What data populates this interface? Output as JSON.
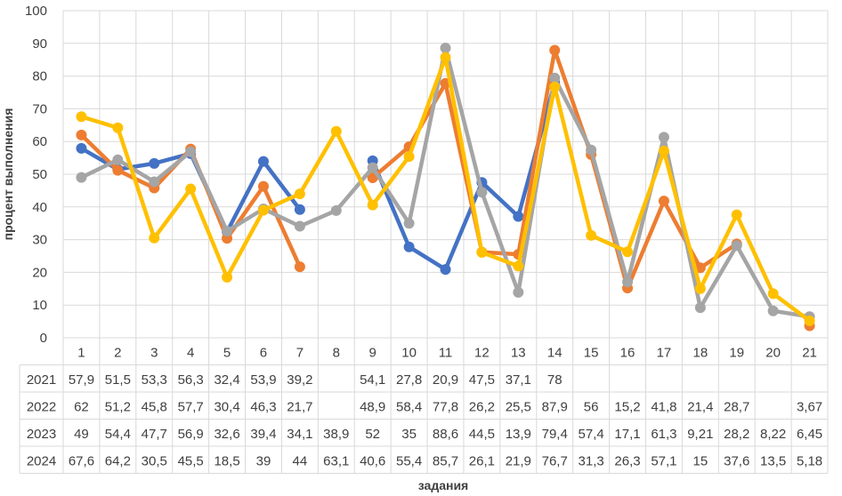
{
  "chart_data": {
    "type": "line",
    "title": "",
    "xlabel": "задания",
    "ylabel": "процент выполнения",
    "ylim": [
      0,
      100
    ],
    "yticks": [
      0,
      10,
      20,
      30,
      40,
      50,
      60,
      70,
      80,
      90,
      100
    ],
    "grid": true,
    "categories": [
      "1",
      "2",
      "3",
      "4",
      "5",
      "6",
      "7",
      "8",
      "9",
      "10",
      "11",
      "12",
      "13",
      "14",
      "15",
      "16",
      "17",
      "18",
      "19",
      "20",
      "21"
    ],
    "series": [
      {
        "name": "2021",
        "color": "#4472C4",
        "values": [
          57.9,
          51.5,
          53.3,
          56.3,
          32.4,
          53.9,
          39.2,
          null,
          54.1,
          27.8,
          20.9,
          47.5,
          37.1,
          78,
          null,
          null,
          null,
          null,
          null,
          null,
          null
        ],
        "labels": [
          "57,9",
          "51,5",
          "53,3",
          "56,3",
          "32,4",
          "53,9",
          "39,2",
          "",
          "54,1",
          "27,8",
          "20,9",
          "47,5",
          "37,1",
          "78",
          "",
          "",
          "",
          "",
          "",
          "",
          ""
        ]
      },
      {
        "name": "2022",
        "color": "#ED7D31",
        "values": [
          62,
          51.2,
          45.8,
          57.7,
          30.4,
          46.3,
          21.7,
          null,
          48.9,
          58.4,
          77.8,
          26.2,
          25.5,
          87.9,
          56,
          15.2,
          41.8,
          21.4,
          28.7,
          null,
          3.67
        ],
        "labels": [
          "62",
          "51,2",
          "45,8",
          "57,7",
          "30,4",
          "46,3",
          "21,7",
          "",
          "48,9",
          "58,4",
          "77,8",
          "26,2",
          "25,5",
          "87,9",
          "56",
          "15,2",
          "41,8",
          "21,4",
          "28,7",
          "",
          "3,67"
        ]
      },
      {
        "name": "2023",
        "color": "#A5A5A5",
        "values": [
          49,
          54.4,
          47.7,
          56.9,
          32.6,
          39.4,
          34.1,
          38.9,
          52,
          35,
          88.6,
          44.5,
          13.9,
          79.4,
          57.4,
          17.1,
          61.3,
          9.21,
          28.2,
          8.22,
          6.45
        ],
        "labels": [
          "49",
          "54,4",
          "47,7",
          "56,9",
          "32,6",
          "39,4",
          "34,1",
          "38,9",
          "52",
          "35",
          "88,6",
          "44,5",
          "13,9",
          "79,4",
          "57,4",
          "17,1",
          "61,3",
          "9,21",
          "28,2",
          "8,22",
          "6,45"
        ]
      },
      {
        "name": "2024",
        "color": "#FFC000",
        "values": [
          67.6,
          64.2,
          30.5,
          45.5,
          18.5,
          39,
          44,
          63.1,
          40.6,
          55.4,
          85.7,
          26.1,
          21.9,
          76.7,
          31.3,
          26.3,
          57.1,
          15,
          37.6,
          13.5,
          5.18
        ],
        "labels": [
          "67,6",
          "64,2",
          "30,5",
          "45,5",
          "18,5",
          "39",
          "44",
          "63,1",
          "40,6",
          "55,4",
          "85,7",
          "26,1",
          "21,9",
          "76,7",
          "31,3",
          "26,3",
          "57,1",
          "15",
          "37,6",
          "13,5",
          "5,18"
        ]
      }
    ]
  }
}
